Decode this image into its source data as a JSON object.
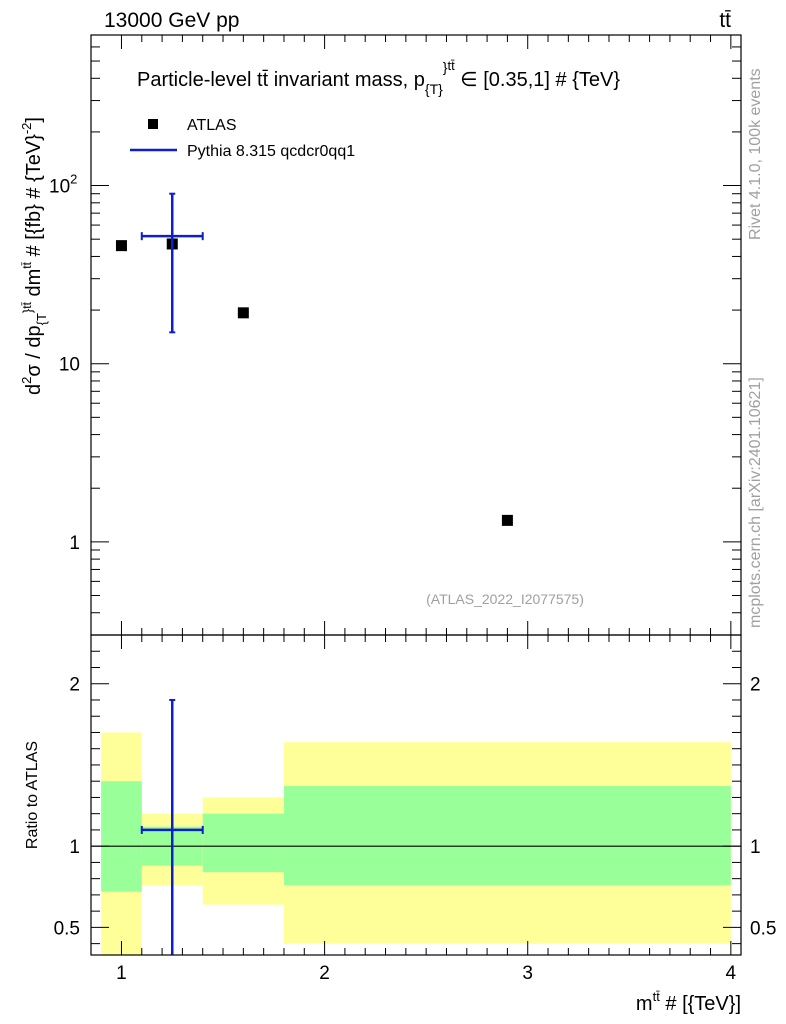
{
  "header": {
    "energy_label": "13000 GeV pp",
    "process_label": "tt̄"
  },
  "side_labels": {
    "rivet": "Rivet 4.1.0,  100k events",
    "mcplots": "mcplots.cern.ch [arXiv:2401.10621]"
  },
  "colors": {
    "data": "#000000",
    "mc": "#0b1fd1",
    "band_inner": "#99ff99",
    "band_outer": "#ffff99",
    "watermark": "#a0a0a0"
  },
  "chart_data": [
    {
      "type": "scatter",
      "panel": "main",
      "title": "Particle-level tt̄ invariant mass, p{T}tt̄ ∈ [0.35,1] # {TeV}",
      "title_parts": {
        "prefix": "Particle-level tt̄ invariant mass, p",
        "sub": "{T}",
        "mid": "}",
        "sup": "tt̄",
        "suffix": " ∈ [0.35,1] # {TeV}"
      },
      "ylabel": "d²σ / dp{T}tt̄ dmtt̄ # [{fb} # {TeV}-2]",
      "ylabel_parts": {
        "a": "d",
        "a_sup": "2",
        "b": "σ / dp",
        "b_sub": "{T",
        "b2": "}",
        "b_sup": "tt̄",
        "c": " dm",
        "c_sup": "tt̄",
        "d": " # [{fb} # {TeV}",
        "d_sup": "-2",
        "e": "]"
      },
      "yscale": "log",
      "ylim": [
        0.3,
        700
      ],
      "xlim": [
        0.85,
        4.05
      ],
      "y_ticks": [
        {
          "value": 1,
          "label": "1"
        },
        {
          "value": 10,
          "label": "10"
        },
        {
          "value": 100,
          "label": "10",
          "sup": "2"
        }
      ],
      "watermark": "(ATLAS_2022_I2077575)",
      "legend": [
        {
          "label": "ATLAS",
          "kind": "marker"
        },
        {
          "label": "Pythia 8.315 qcdcr0qq1",
          "kind": "line"
        }
      ],
      "series": [
        {
          "name": "ATLAS",
          "x": [
            1.0,
            1.25,
            1.6,
            2.9
          ],
          "y": [
            46,
            47,
            19.3,
            1.32
          ]
        },
        {
          "name": "Pythia 8.315 qcdcr0qq1",
          "x": [
            1.25
          ],
          "y": [
            52
          ],
          "xerr_low": [
            1.1
          ],
          "xerr_high": [
            1.4
          ],
          "yerr_low": [
            15
          ],
          "yerr_high": [
            90
          ]
        }
      ]
    },
    {
      "type": "scatter",
      "panel": "ratio",
      "ylabel": "Ratio to ATLAS",
      "ylim": [
        0.33,
        2.3
      ],
      "xlim": [
        0.85,
        4.05
      ],
      "xlabel_parts": {
        "a": "m",
        "sup": "tt̄",
        "b": " # [{TeV}]"
      },
      "x_ticks": [
        {
          "value": 1,
          "label": "1"
        },
        {
          "value": 2,
          "label": "2"
        },
        {
          "value": 3,
          "label": "3"
        },
        {
          "value": 4,
          "label": "4"
        }
      ],
      "y_ticks": [
        {
          "value": 0.5,
          "label": "0.5"
        },
        {
          "value": 1,
          "label": "1"
        },
        {
          "value": 2,
          "label": "2"
        }
      ],
      "bands": [
        {
          "x0": 0.9,
          "x1": 1.1,
          "outer": [
            0.33,
            1.7
          ],
          "inner": [
            0.72,
            1.4
          ]
        },
        {
          "x0": 1.1,
          "x1": 1.4,
          "outer": [
            0.76,
            1.2
          ],
          "inner": [
            0.88,
            1.12
          ]
        },
        {
          "x0": 1.4,
          "x1": 1.8,
          "outer": [
            0.64,
            1.3
          ],
          "inner": [
            0.84,
            1.2
          ]
        },
        {
          "x0": 1.8,
          "x1": 4.0,
          "outer": [
            0.4,
            1.64
          ],
          "inner": [
            0.76,
            1.37
          ]
        }
      ],
      "series": [
        {
          "name": "Pythia 8.315 qcdcr0qq1",
          "x": [
            1.25
          ],
          "y": [
            1.1
          ],
          "xerr_low": [
            1.1
          ],
          "xerr_high": [
            1.4
          ],
          "yerr_low": [
            0.33
          ],
          "yerr_high": [
            1.9
          ]
        }
      ]
    }
  ]
}
